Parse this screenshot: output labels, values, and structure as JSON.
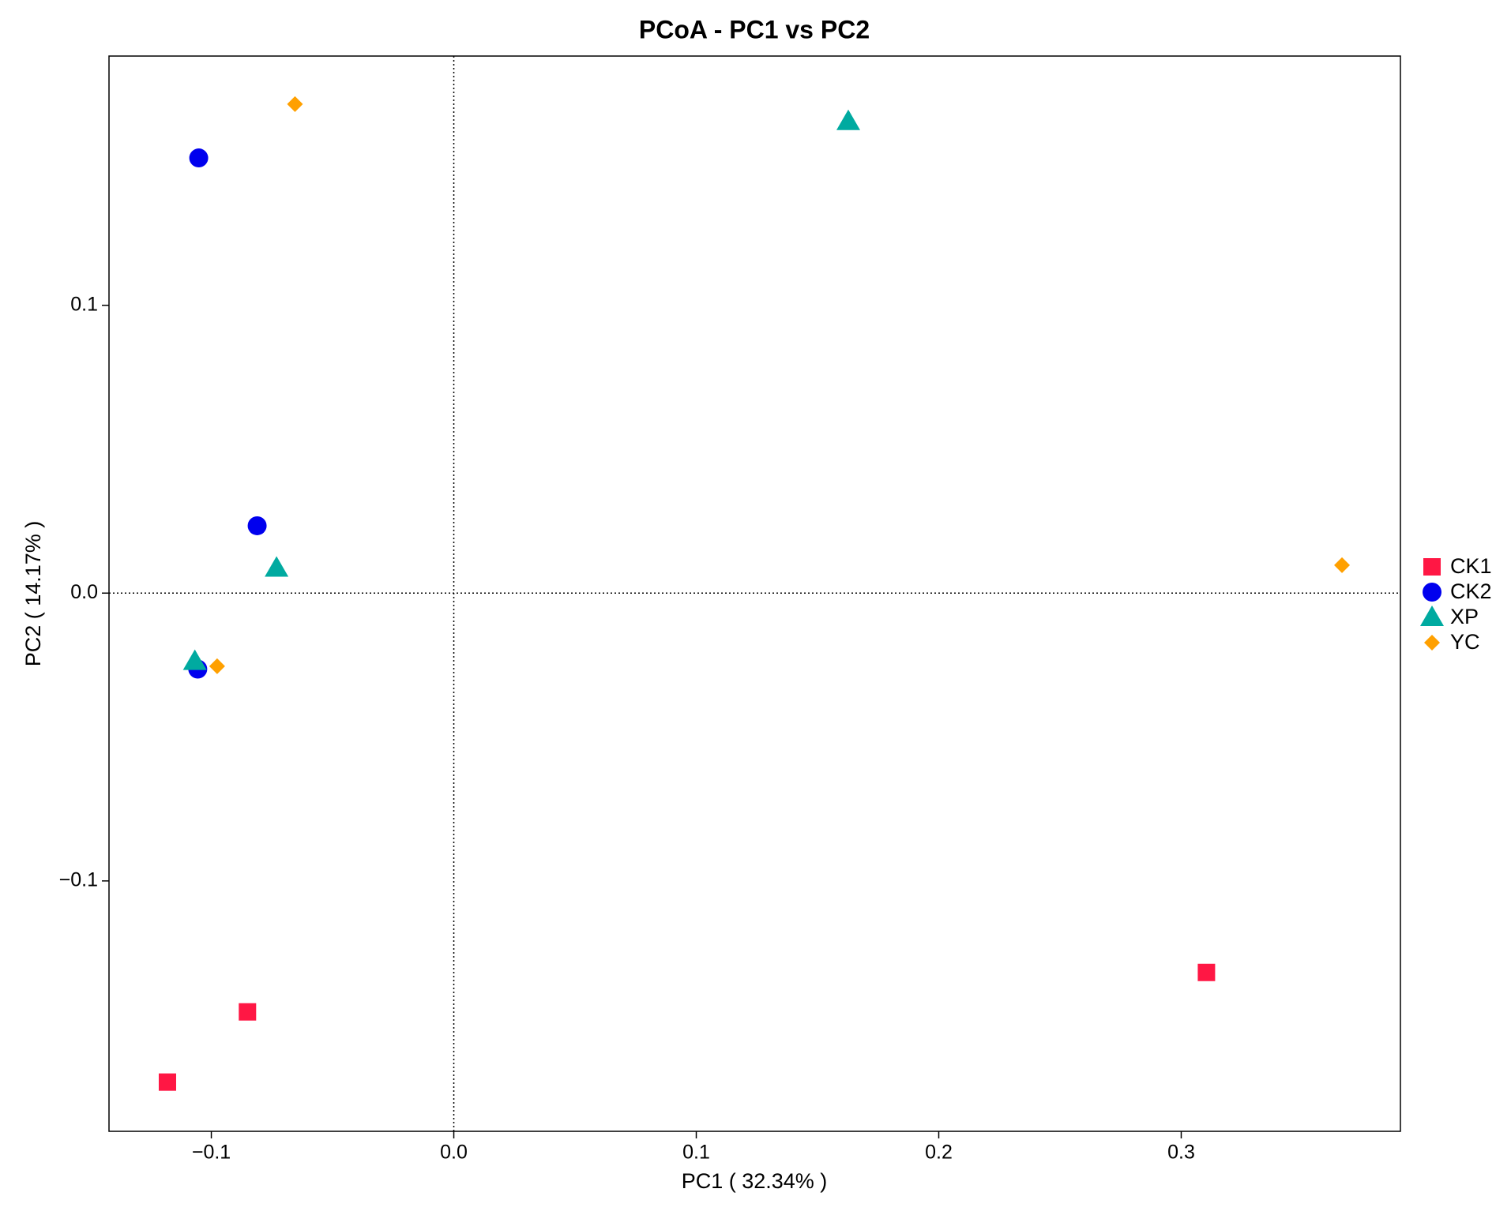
{
  "chart_data": {
    "type": "scatter",
    "title": "PCoA - PC1 vs PC2",
    "x_label": "PC1 ( 32.34% )",
    "y_label": "PC2 ( 14.17% )",
    "xlim": [
      -0.1422,
      0.3904
    ],
    "ylim": [
      -0.187,
      0.1866
    ],
    "xticks": [
      {
        "value": -0.1,
        "label": "−0.1"
      },
      {
        "value": 0,
        "label": "0.0"
      },
      0.1,
      0.2,
      0.3
    ],
    "yticks": [
      {
        "value": -0.1,
        "label": "−0.1"
      },
      {
        "value": 0,
        "label": "0.0"
      },
      0.1
    ],
    "reference_lines": {
      "x": 0,
      "y": 0
    },
    "legend": "right",
    "series": [
      {
        "name": "CK1",
        "color": "#ff1744",
        "marker": "square",
        "x": [
          -0.1181,
          -0.0851,
          0.3104
        ],
        "y": [
          -0.1699,
          -0.1455,
          -0.1318
        ]
      },
      {
        "name": "CK2",
        "color": "#0000ee",
        "marker": "circle",
        "x": [
          -0.1052,
          -0.0811,
          -0.1056
        ],
        "y": [
          0.1512,
          0.0234,
          -0.0264
        ]
      },
      {
        "name": "XP",
        "color": "#00aaa0",
        "marker": "triangle",
        "x": [
          0.1627,
          -0.0731,
          -0.1068
        ],
        "y": [
          0.1639,
          0.0087,
          -0.0237
        ]
      },
      {
        "name": "YC",
        "color": "#ffa000",
        "marker": "diamond",
        "x": [
          -0.0655,
          0.3663,
          -0.0976
        ],
        "y": [
          0.1699,
          0.0097,
          -0.0254
        ]
      }
    ]
  }
}
